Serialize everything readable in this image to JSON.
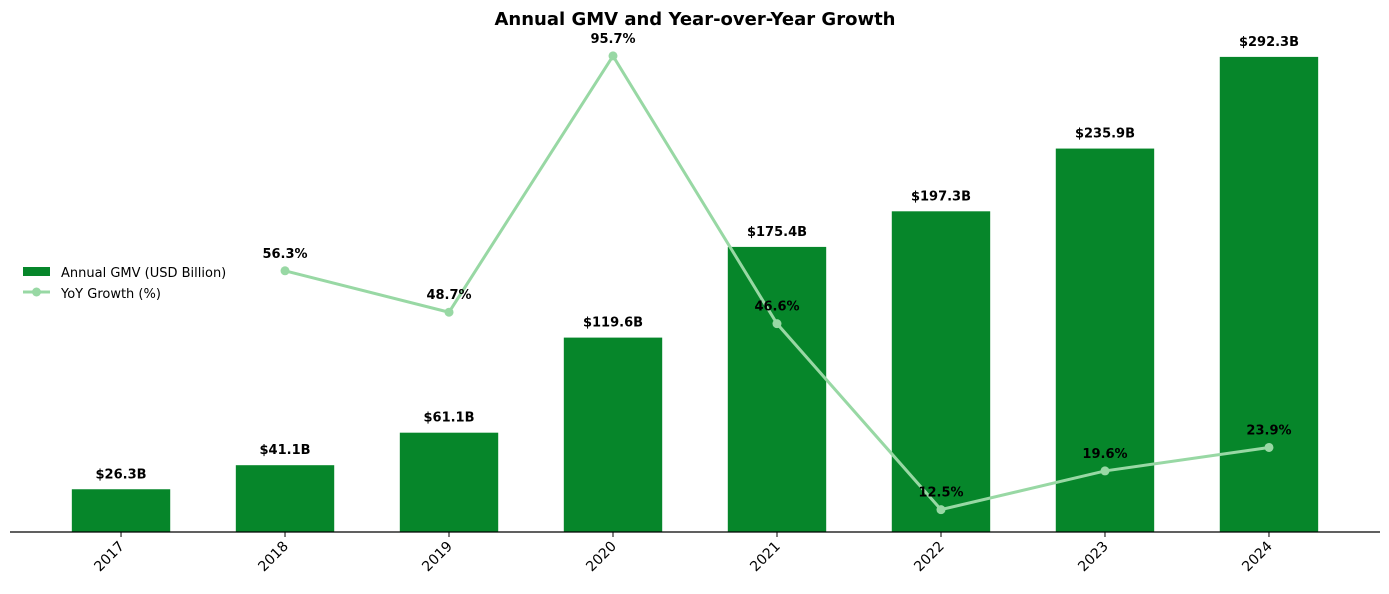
{
  "chart_data": {
    "type": "bar+line",
    "title": "Annual GMV and Year-over-Year Growth",
    "categories": [
      "2017",
      "2018",
      "2019",
      "2020",
      "2021",
      "2022",
      "2023",
      "2024"
    ],
    "series": [
      {
        "name": "Annual GMV (USD Billion)",
        "type": "bar",
        "axis": "left",
        "color": "#06862a",
        "values": [
          26.3,
          41.1,
          61.1,
          119.6,
          175.4,
          197.3,
          235.9,
          292.3
        ],
        "labels": [
          "$26.3B",
          "$41.1B",
          "$61.1B",
          "$119.6B",
          "$175.4B",
          "$197.3B",
          "$235.9B",
          "$292.3B"
        ]
      },
      {
        "name": "YoY Growth (%)",
        "type": "line",
        "axis": "right",
        "color": "#98d8a4",
        "values": [
          null,
          56.3,
          48.7,
          95.7,
          46.6,
          12.5,
          19.6,
          23.9
        ],
        "labels": [
          null,
          "56.3%",
          "48.7%",
          "95.7%",
          "46.6%",
          "12.5%",
          "19.6%",
          "23.9%"
        ]
      }
    ],
    "ylim": [
      0,
      307
    ],
    "y2lim": [
      8.4,
      99.9
    ],
    "xlabel": "",
    "ylabel": "",
    "grid": false,
    "legend": "center-left"
  }
}
